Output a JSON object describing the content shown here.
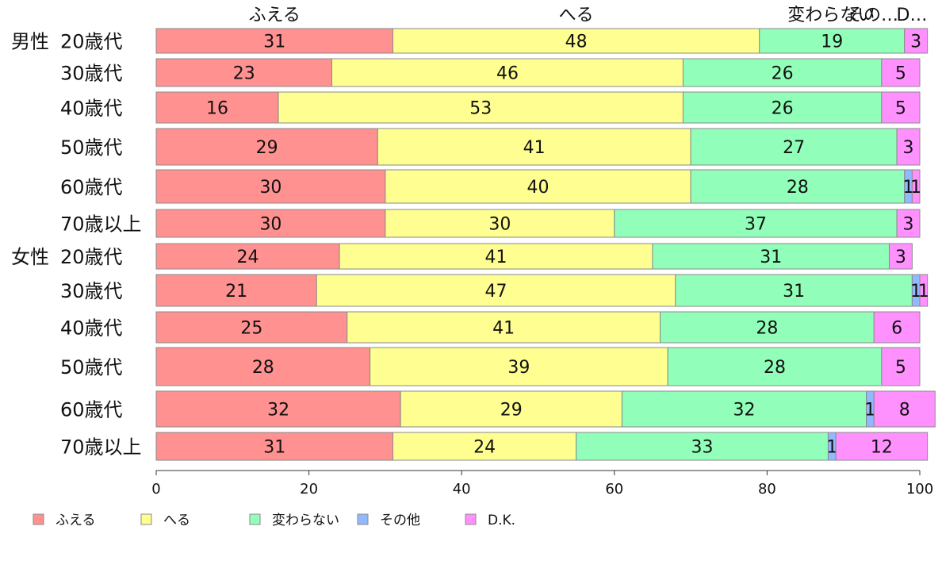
{
  "chart_data": {
    "type": "bar",
    "orientation": "horizontal",
    "stacked": true,
    "title": "",
    "xlabel": "",
    "ylabel": "",
    "xlim": [
      0,
      100
    ],
    "xticks": [
      0,
      20,
      40,
      60,
      80,
      100
    ],
    "grid": false,
    "legend_position": "bottom",
    "top_labels": [
      "ふえる",
      "へる",
      "変わらない",
      "その…",
      "D…"
    ],
    "groups": [
      {
        "label": "男性",
        "rows": [
          0,
          1,
          2,
          3,
          4,
          5
        ]
      },
      {
        "label": "女性",
        "rows": [
          6,
          7,
          8,
          9,
          10,
          11
        ]
      }
    ],
    "categories": [
      "20歳代",
      "30歳代",
      "40歳代",
      "50歳代",
      "60歳代",
      "70歳以上",
      "20歳代",
      "30歳代",
      "40歳代",
      "50歳代",
      "60歳代",
      "70歳以上"
    ],
    "series": [
      {
        "name": "ふえる",
        "color": "#ff9191",
        "values": [
          31,
          23,
          16,
          29,
          30,
          30,
          24,
          21,
          25,
          28,
          32,
          31
        ]
      },
      {
        "name": "へる",
        "color": "#ffff91",
        "values": [
          48,
          46,
          53,
          41,
          40,
          30,
          41,
          47,
          41,
          39,
          29,
          24
        ]
      },
      {
        "name": "変わらない",
        "color": "#91ffb9",
        "values": [
          19,
          26,
          26,
          27,
          28,
          37,
          31,
          31,
          28,
          28,
          32,
          33
        ]
      },
      {
        "name": "その他",
        "color": "#91b9ff",
        "values": [
          0,
          0,
          0,
          0,
          1,
          0,
          0,
          1,
          0,
          0,
          1,
          1
        ]
      },
      {
        "name": "D.K.",
        "color": "#ff91ff",
        "values": [
          3,
          5,
          5,
          3,
          1,
          3,
          3,
          1,
          6,
          5,
          8,
          12
        ]
      }
    ]
  }
}
